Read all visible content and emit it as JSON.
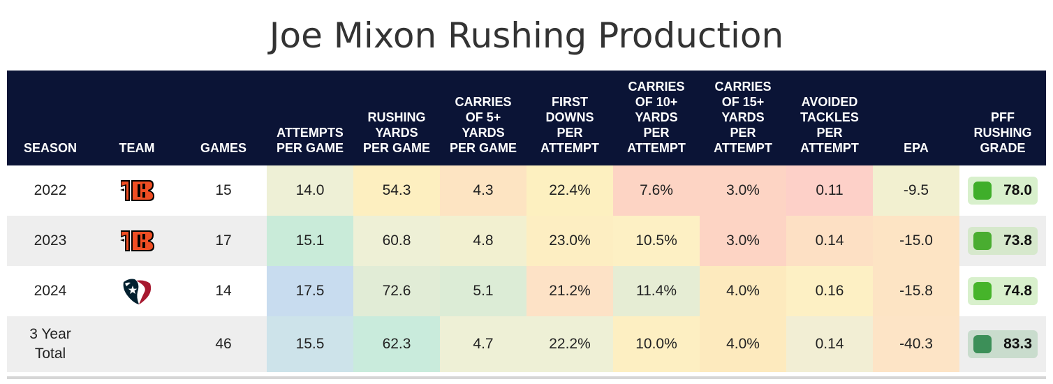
{
  "title": "Joe Mixon Rushing Production",
  "columns": [
    "SEASON",
    "TEAM",
    "GAMES",
    "ATTEMPTS PER GAME",
    "RUSHING YARDS PER GAME",
    "CARRIES OF 5+ YARDS PER GAME",
    "FIRST DOWNS PER ATTEMPT",
    "CARRIES OF 10+ YARDS PER ATTEMPT",
    "CARRIES OF 15+ YARDS PER ATTEMPT",
    "AVOIDED TACKLES PER ATTEMPT",
    "EPA",
    "PFF RUSHING GRADE"
  ],
  "rows": [
    {
      "season": "2022",
      "team": "bengals",
      "games": "15",
      "cells": [
        "14.0",
        "54.3",
        "4.3",
        "22.4%",
        "7.6%",
        "3.0%",
        "0.11",
        "-9.5"
      ],
      "colors": [
        "#eef0d6",
        "#fdefc0",
        "#fde4c2",
        "#fdf0c0",
        "#fdd4c4",
        "#fdd4c4",
        "#fdd0c8",
        "#f2f0d0"
      ],
      "grade": "78.0",
      "grade_bg": "#d8f0cc",
      "grade_sq": "#3fae2a"
    },
    {
      "season": "2023",
      "team": "bengals",
      "games": "17",
      "cells": [
        "15.1",
        "60.8",
        "4.8",
        "23.0%",
        "10.5%",
        "3.0%",
        "0.14",
        "-15.0"
      ],
      "colors": [
        "#c9ebd9",
        "#eef0d6",
        "#f2f0d0",
        "#fdeec2",
        "#fdf0c4",
        "#fdd4c4",
        "#fde0c4",
        "#fde4c4"
      ],
      "grade": "73.8",
      "grade_bg": "#d6e8cc",
      "grade_sq": "#49ad30"
    },
    {
      "season": "2024",
      "team": "texans",
      "games": "14",
      "cells": [
        "17.5",
        "72.6",
        "5.1",
        "21.2%",
        "11.4%",
        "4.0%",
        "0.16",
        "-15.8"
      ],
      "colors": [
        "#c8dcef",
        "#e1ecd6",
        "#dcecd6",
        "#fde2c6",
        "#e6edd4",
        "#fdeabe",
        "#fdf0c4",
        "#fde4c4"
      ],
      "grade": "74.8",
      "grade_bg": "#d8f0cc",
      "grade_sq": "#46b42a"
    },
    {
      "season": "3 Year Total",
      "team": "",
      "games": "46",
      "cells": [
        "15.5",
        "62.3",
        "4.7",
        "22.2%",
        "10.0%",
        "4.0%",
        "0.14",
        "-40.3"
      ],
      "colors": [
        "#cde3ea",
        "#c9ebdc",
        "#eef0d6",
        "#eef0d6",
        "#fdefc2",
        "#fdeabe",
        "#f2eed4",
        "#fde4c6"
      ],
      "grade": "83.3",
      "grade_bg": "#c9dccd",
      "grade_sq": "#3c8f58"
    }
  ],
  "colors": {
    "header_bg": "#0b1436",
    "header_text": "#ffffff",
    "bengals_orange": "#f04e23",
    "bengals_black": "#000000",
    "texans_navy": "#03202f",
    "texans_red": "#a71930"
  },
  "chart_data": {
    "type": "table",
    "title": "Joe Mixon Rushing Production",
    "columns": [
      "Season",
      "Team",
      "Games",
      "Attempts per game",
      "Rushing yards per game",
      "Carries of 5+ yards per game",
      "First downs per attempt",
      "Carries of 10+ yards per attempt",
      "Carries of 15+ yards per attempt",
      "Avoided tackles per attempt",
      "EPA",
      "PFF rushing grade"
    ],
    "rows": [
      [
        "2022",
        "CIN",
        15,
        14.0,
        54.3,
        4.3,
        22.4,
        7.6,
        3.0,
        0.11,
        -9.5,
        78.0
      ],
      [
        "2023",
        "CIN",
        17,
        15.1,
        60.8,
        4.8,
        23.0,
        10.5,
        3.0,
        0.14,
        -15.0,
        73.8
      ],
      [
        "2024",
        "HOU",
        14,
        17.5,
        72.6,
        5.1,
        21.2,
        11.4,
        4.0,
        0.16,
        -15.8,
        74.8
      ],
      [
        "3 Year Total",
        "",
        46,
        15.5,
        62.3,
        4.7,
        22.2,
        10.0,
        4.0,
        0.14,
        -40.3,
        83.3
      ]
    ]
  }
}
